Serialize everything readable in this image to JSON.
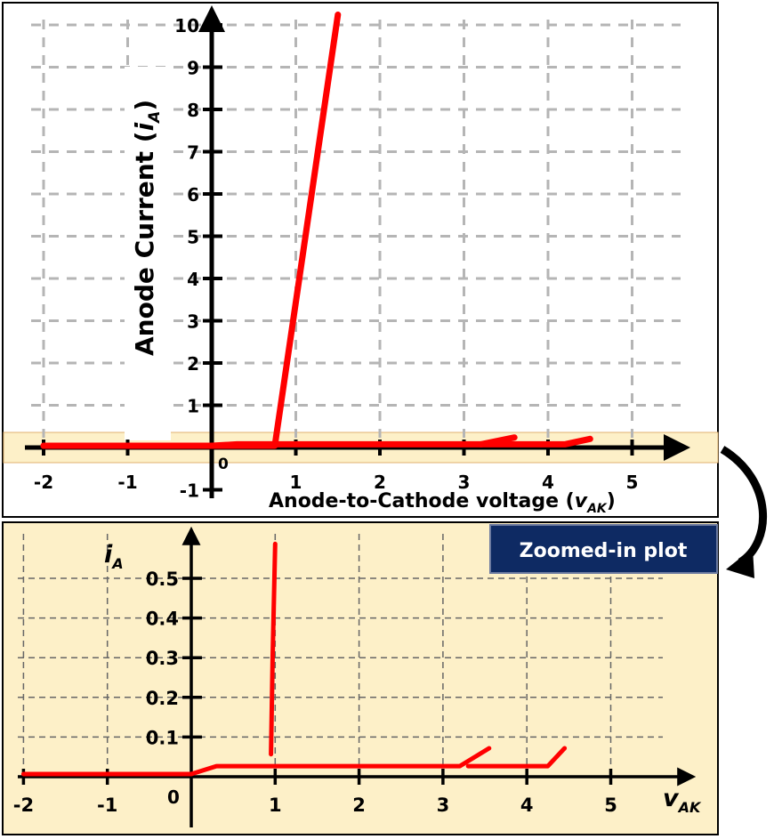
{
  "colors": {
    "curve": "#ff0000",
    "grid": "#b5b5b5",
    "highlight": "#fdf0c8",
    "badge": "#0e2a63",
    "badge_text": "#ffffff"
  },
  "top_plot": {
    "ylabel_main": "Anode Current (",
    "ylabel_var": "i",
    "ylabel_sub": "A",
    "ylabel_close": ")",
    "xlabel_main": "Anode-to-Cathode voltage (",
    "xlabel_var": "v",
    "xlabel_sub": "AK",
    "xlabel_close": ")",
    "origin_label": "0"
  },
  "zoom_plot": {
    "badge": "Zoomed-in plot",
    "ylabel_var": "i",
    "ylabel_sub": "A",
    "xlabel_var": "v",
    "xlabel_sub": "AK",
    "origin_label": "0"
  },
  "chart_data": [
    {
      "type": "line",
      "x_ticks": [
        "-2",
        "-1",
        "1",
        "2",
        "3",
        "4",
        "5"
      ],
      "y_ticks": [
        "-1",
        "1",
        "2",
        "3",
        "4",
        "5",
        "6",
        "7",
        "8",
        "9",
        "10"
      ],
      "xlim": [
        -2,
        5
      ],
      "ylim": [
        -1,
        10
      ],
      "grid": true,
      "series": [
        {
          "x": [
            -2,
            0,
            0.75,
            1.5
          ],
          "y": [
            0,
            0,
            0,
            10.2
          ]
        },
        {
          "x": [
            -2,
            0,
            0.3,
            3.2,
            3.6
          ],
          "y": [
            0,
            0,
            0.02,
            0.02,
            0.12
          ]
        },
        {
          "x": [
            3.2,
            4.2,
            4.5
          ],
          "y": [
            0.02,
            0.02,
            0.1
          ]
        }
      ]
    },
    {
      "type": "line",
      "x_ticks": [
        "-2",
        "-1",
        "1",
        "2",
        "3",
        "4",
        "5"
      ],
      "y_ticks": [
        "0.1",
        "0.2",
        "0.3",
        "0.4",
        "0.5"
      ],
      "xlim": [
        -2,
        5
      ],
      "ylim": [
        0,
        0.58
      ],
      "grid": true,
      "series": [
        {
          "x": [
            0.95,
            0.97,
            1.0
          ],
          "y": [
            0.05,
            0.3,
            0.58
          ]
        },
        {
          "x": [
            -2,
            0,
            0.3,
            1,
            3.2,
            3.55
          ],
          "y": [
            0,
            0,
            0.02,
            0.02,
            0.02,
            0.065
          ]
        },
        {
          "x": [
            3.3,
            4.25,
            4.45
          ],
          "y": [
            0.02,
            0.02,
            0.065
          ]
        }
      ]
    }
  ]
}
